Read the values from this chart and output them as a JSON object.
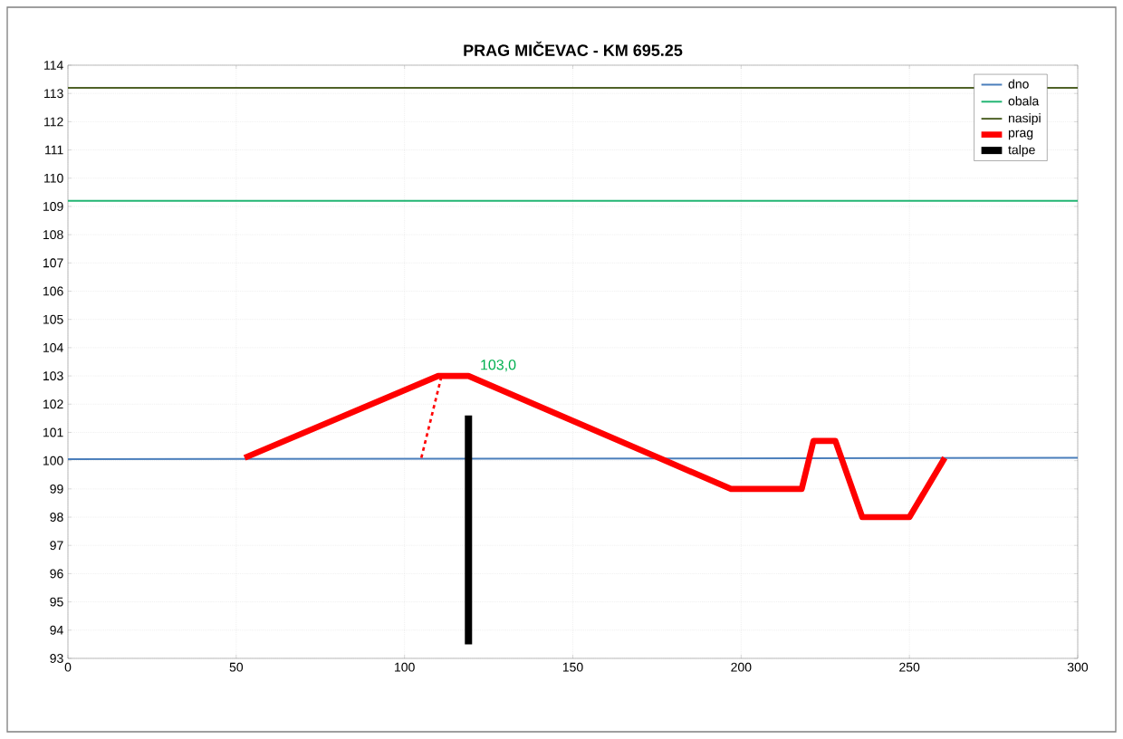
{
  "chart_data": {
    "type": "line",
    "title": "PRAG MIČEVAC  - KM 695.25",
    "series": [
      {
        "name": "dno",
        "color": "#4a7ebb",
        "x": [
          0,
          300
        ],
        "values": [
          100.05,
          100.1
        ]
      },
      {
        "name": "obala",
        "color": "#22b573",
        "x": [
          0,
          300
        ],
        "values": [
          109.2,
          109.2
        ]
      },
      {
        "name": "nasipi",
        "color": "#4f6228",
        "x": [
          0,
          300
        ],
        "values": [
          113.2,
          113.2
        ]
      },
      {
        "name": "prag",
        "color": "#ff0000",
        "x": [
          52.5,
          110,
          119,
          197,
          218,
          221.5,
          228,
          236,
          250,
          260.5
        ],
        "values": [
          100.1,
          103,
          103,
          99,
          99,
          100.7,
          100.7,
          98,
          98,
          100.1
        ]
      },
      {
        "name": "talpe",
        "color": "#000000",
        "x": [
          119,
          119
        ],
        "values": [
          93.5,
          101.6
        ]
      },
      {
        "color": "#ff0000",
        "line_style": "dashed",
        "x": [
          105,
          111
        ],
        "values": [
          100.1,
          103
        ]
      }
    ],
    "annotations": [
      {
        "text": "103,0",
        "x": 119,
        "y": 103
      }
    ],
    "xlim": [
      0,
      300
    ],
    "ylim": [
      93,
      114
    ],
    "xticks": [
      0,
      50,
      100,
      150,
      200,
      250,
      300
    ],
    "yticks": [
      93,
      94,
      95,
      96,
      97,
      98,
      99,
      100,
      101,
      102,
      103,
      104,
      105,
      106,
      107,
      108,
      109,
      110,
      111,
      112,
      113,
      114
    ],
    "grid": true,
    "legend": "top right",
    "line_style": "solid",
    "marker": "none"
  }
}
